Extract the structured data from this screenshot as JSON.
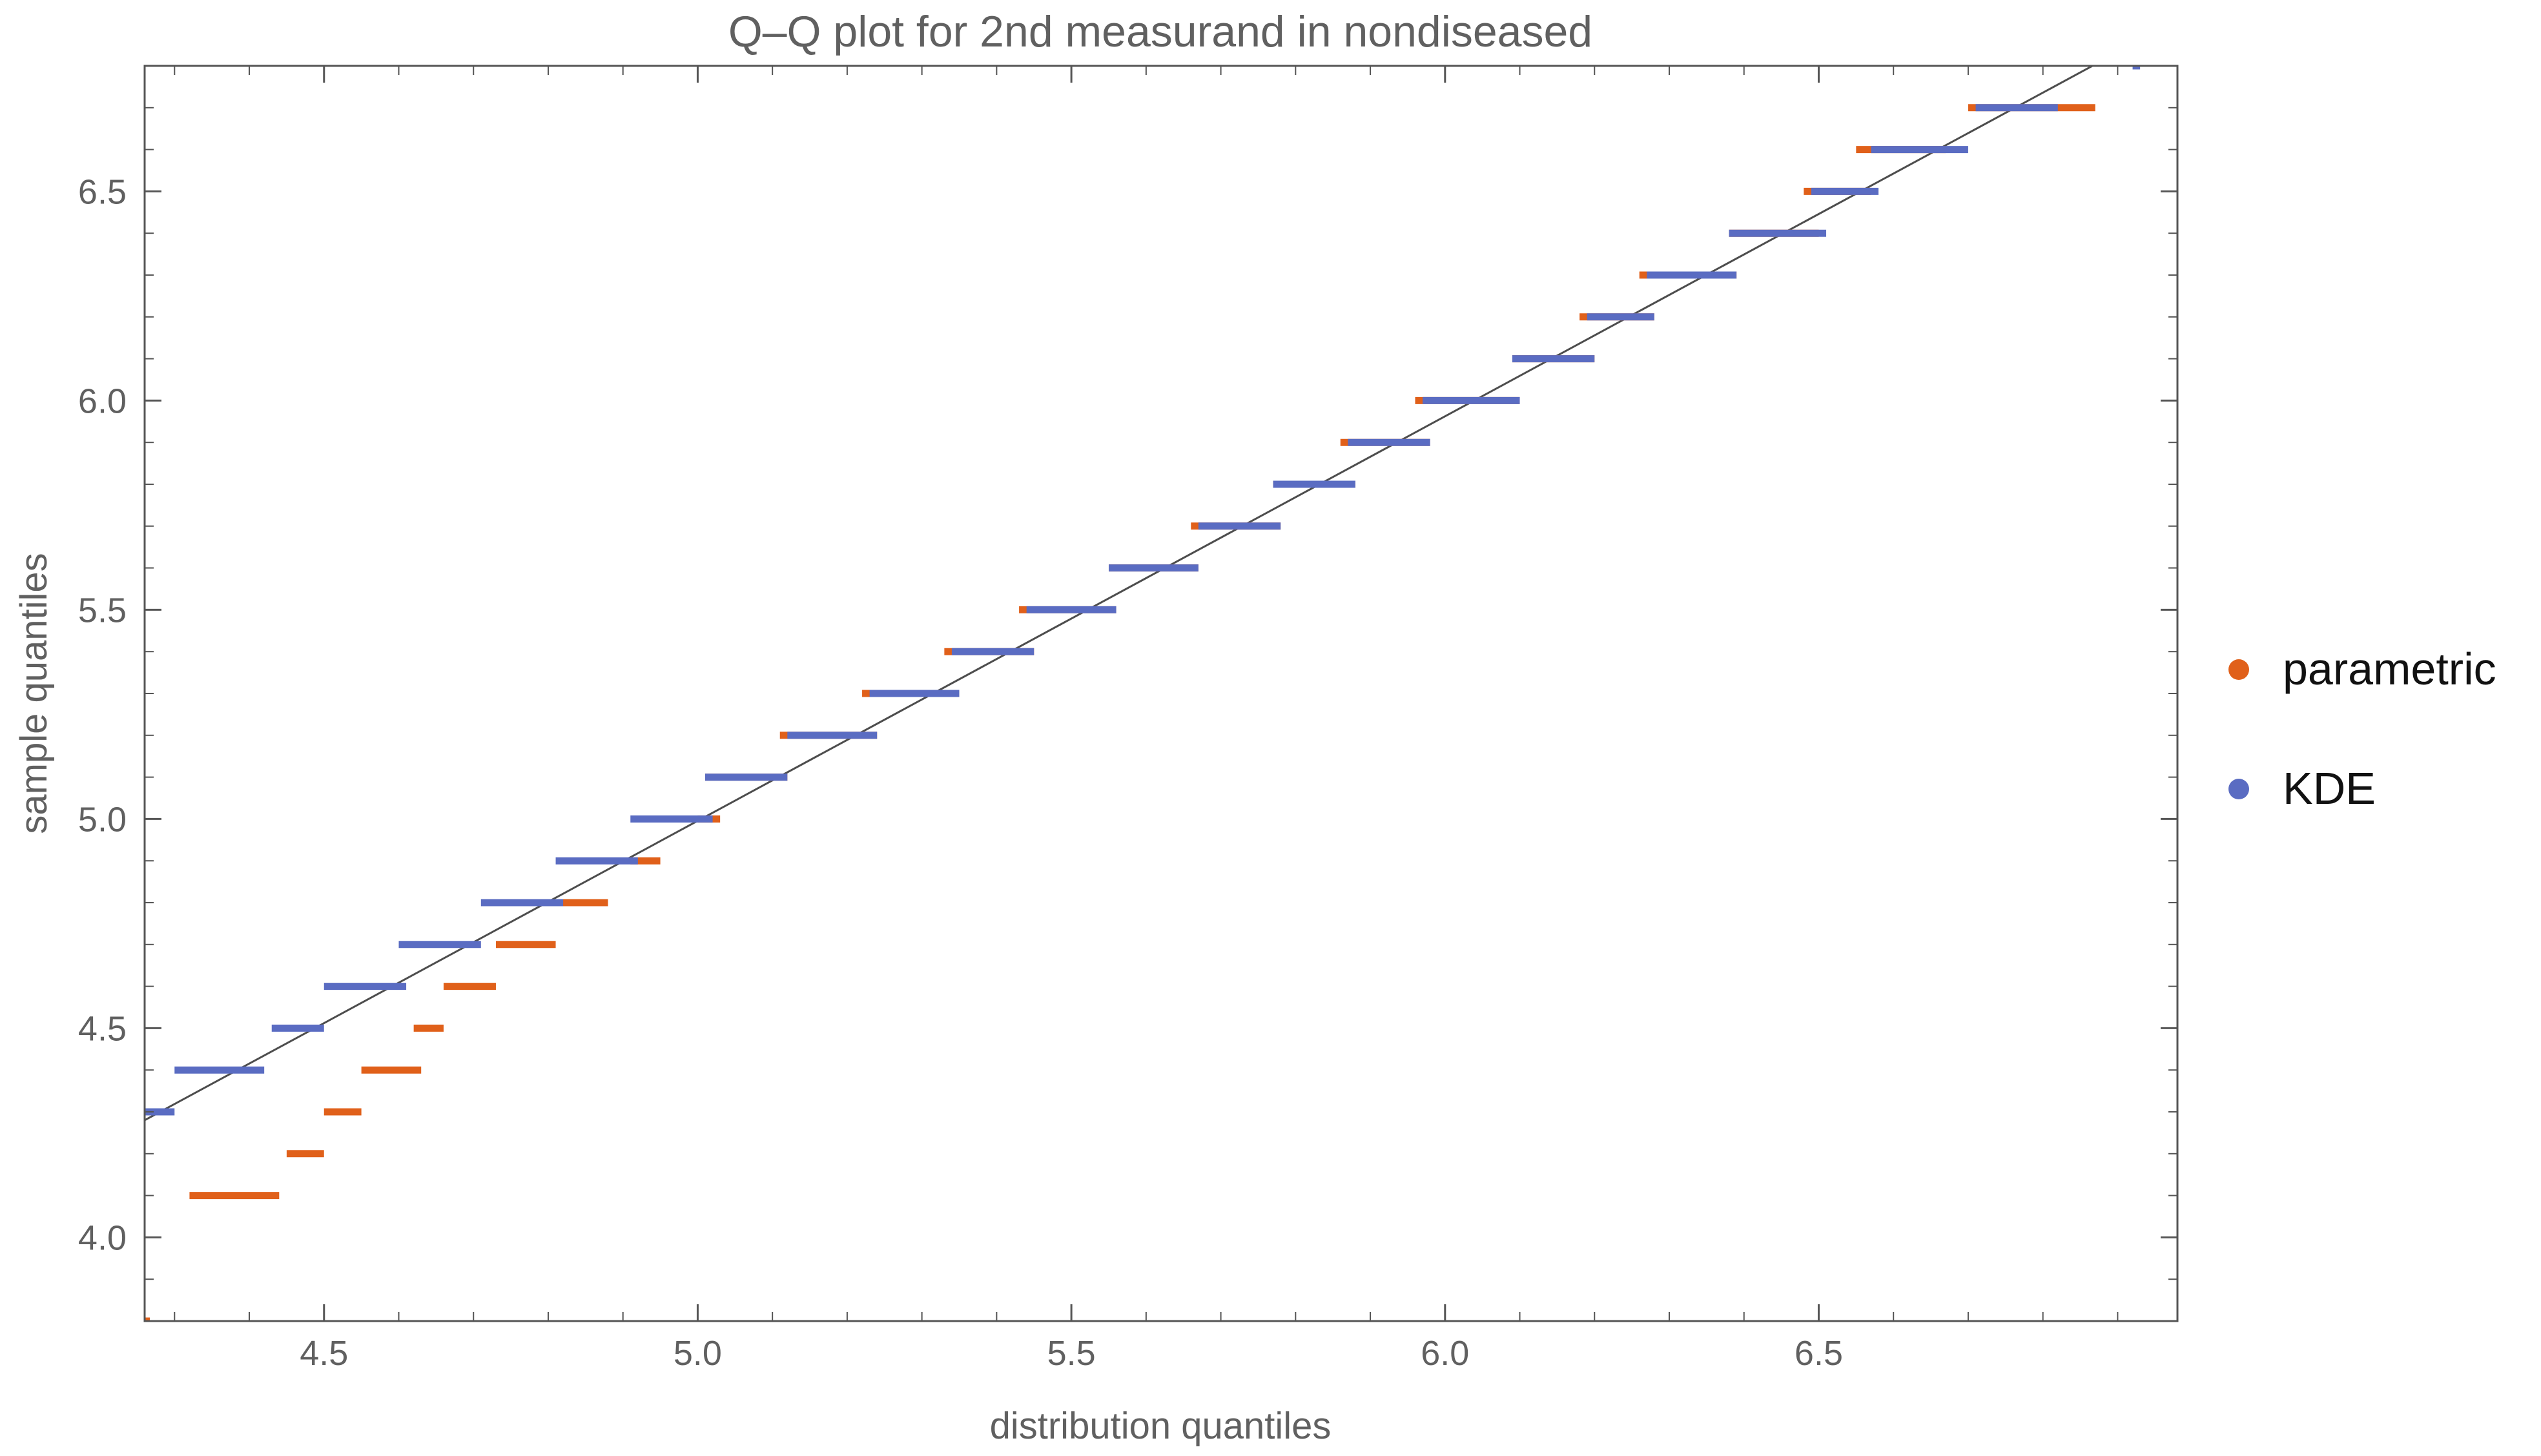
{
  "chart_data": {
    "type": "scatter",
    "title": "Q–Q plot for 2nd measurand in nondiseased",
    "xlabel": "distribution quantiles",
    "ylabel": "sample quantiles",
    "xlim": [
      4.26,
      6.98
    ],
    "ylim": [
      3.8,
      6.8
    ],
    "xticks": [
      "4.5",
      "5.0",
      "5.5",
      "6.0",
      "6.5"
    ],
    "yticks": [
      "4.0",
      "4.5",
      "5.0",
      "5.5",
      "6.0",
      "6.5"
    ],
    "grid": false,
    "legend_position": "right",
    "reference_line": {
      "x": [
        4.26,
        6.98
      ],
      "y": [
        4.28,
        6.91
      ],
      "color": "#4d4d4d"
    },
    "series": [
      {
        "name": "parametric",
        "color": "#e0601a",
        "segments": [
          {
            "y": 3.8,
            "x_start": 4.26,
            "x_end": 4.265
          },
          {
            "y": 4.1,
            "x_start": 4.32,
            "x_end": 4.44
          },
          {
            "y": 4.2,
            "x_start": 4.45,
            "x_end": 4.5
          },
          {
            "y": 4.3,
            "x_start": 4.5,
            "x_end": 4.55
          },
          {
            "y": 4.4,
            "x_start": 4.55,
            "x_end": 4.63
          },
          {
            "y": 4.5,
            "x_start": 4.62,
            "x_end": 4.66
          },
          {
            "y": 4.6,
            "x_start": 4.66,
            "x_end": 4.73
          },
          {
            "y": 4.7,
            "x_start": 4.73,
            "x_end": 4.81
          },
          {
            "y": 4.8,
            "x_start": 4.8,
            "x_end": 4.88
          },
          {
            "y": 4.9,
            "x_start": 4.91,
            "x_end": 4.95
          },
          {
            "y": 5.0,
            "x_start": 5.0,
            "x_end": 5.03
          },
          {
            "y": 5.1,
            "x_start": 5.01,
            "x_end": 5.12
          },
          {
            "y": 5.2,
            "x_start": 5.11,
            "x_end": 5.24
          },
          {
            "y": 5.3,
            "x_start": 5.22,
            "x_end": 5.35
          },
          {
            "y": 5.4,
            "x_start": 5.33,
            "x_end": 5.45
          },
          {
            "y": 5.5,
            "x_start": 5.43,
            "x_end": 5.56
          },
          {
            "y": 5.6,
            "x_start": 5.55,
            "x_end": 5.67
          },
          {
            "y": 5.7,
            "x_start": 5.66,
            "x_end": 5.78
          },
          {
            "y": 5.8,
            "x_start": 5.77,
            "x_end": 5.88
          },
          {
            "y": 5.9,
            "x_start": 5.86,
            "x_end": 5.98
          },
          {
            "y": 6.0,
            "x_start": 5.96,
            "x_end": 6.1
          },
          {
            "y": 6.1,
            "x_start": 6.09,
            "x_end": 6.2
          },
          {
            "y": 6.2,
            "x_start": 6.18,
            "x_end": 6.28
          },
          {
            "y": 6.3,
            "x_start": 6.26,
            "x_end": 6.39
          },
          {
            "y": 6.4,
            "x_start": 6.38,
            "x_end": 6.5
          },
          {
            "y": 6.5,
            "x_start": 6.48,
            "x_end": 6.57
          },
          {
            "y": 6.6,
            "x_start": 6.55,
            "x_end": 6.67
          },
          {
            "y": 6.7,
            "x_start": 6.7,
            "x_end": 6.87
          },
          {
            "y": 6.8,
            "x_start": 6.979,
            "x_end": 6.98
          }
        ]
      },
      {
        "name": "KDE",
        "color": "#5a6cc2",
        "segments": [
          {
            "y": 4.3,
            "x_start": 4.26,
            "x_end": 4.3
          },
          {
            "y": 4.4,
            "x_start": 4.3,
            "x_end": 4.42
          },
          {
            "y": 4.5,
            "x_start": 4.43,
            "x_end": 4.5
          },
          {
            "y": 4.6,
            "x_start": 4.5,
            "x_end": 4.61
          },
          {
            "y": 4.7,
            "x_start": 4.6,
            "x_end": 4.71
          },
          {
            "y": 4.8,
            "x_start": 4.71,
            "x_end": 4.82
          },
          {
            "y": 4.9,
            "x_start": 4.81,
            "x_end": 4.92
          },
          {
            "y": 5.0,
            "x_start": 4.91,
            "x_end": 5.02
          },
          {
            "y": 5.1,
            "x_start": 5.01,
            "x_end": 5.12
          },
          {
            "y": 5.2,
            "x_start": 5.12,
            "x_end": 5.24
          },
          {
            "y": 5.3,
            "x_start": 5.23,
            "x_end": 5.35
          },
          {
            "y": 5.4,
            "x_start": 5.34,
            "x_end": 5.45
          },
          {
            "y": 5.5,
            "x_start": 5.44,
            "x_end": 5.56
          },
          {
            "y": 5.6,
            "x_start": 5.55,
            "x_end": 5.67
          },
          {
            "y": 5.7,
            "x_start": 5.67,
            "x_end": 5.78
          },
          {
            "y": 5.8,
            "x_start": 5.77,
            "x_end": 5.88
          },
          {
            "y": 5.9,
            "x_start": 5.87,
            "x_end": 5.98
          },
          {
            "y": 6.0,
            "x_start": 5.97,
            "x_end": 6.1
          },
          {
            "y": 6.1,
            "x_start": 6.09,
            "x_end": 6.2
          },
          {
            "y": 6.2,
            "x_start": 6.19,
            "x_end": 6.28
          },
          {
            "y": 6.3,
            "x_start": 6.27,
            "x_end": 6.39
          },
          {
            "y": 6.4,
            "x_start": 6.38,
            "x_end": 6.51
          },
          {
            "y": 6.5,
            "x_start": 6.49,
            "x_end": 6.58
          },
          {
            "y": 6.6,
            "x_start": 6.57,
            "x_end": 6.7
          },
          {
            "y": 6.7,
            "x_start": 6.71,
            "x_end": 6.82
          },
          {
            "y": 6.8,
            "x_start": 6.92,
            "x_end": 6.93
          }
        ]
      }
    ]
  }
}
